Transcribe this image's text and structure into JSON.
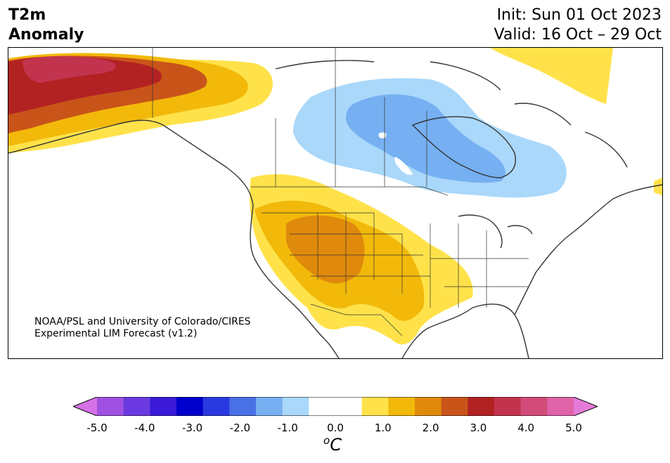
{
  "title": {
    "line1": "T2m",
    "line2": "Anomaly"
  },
  "header_right": {
    "init": "Init: Sun 01 Oct 2023",
    "valid": "Valid: 16 Oct – 29 Oct"
  },
  "credit": {
    "line1": "NOAA/PSL and University of Colorado/CIRES",
    "line2": "Experimental LIM Forecast (v1.2)"
  },
  "colorbar": {
    "unit_base": "C",
    "unit_sup": "o",
    "tick_labels": [
      "-5.0",
      "-4.0",
      "-3.0",
      "-2.0",
      "-1.0",
      "0.0",
      "1.0",
      "2.0",
      "3.0",
      "4.0",
      "5.0"
    ],
    "under_color": "#d670e6",
    "over_color": "#e67ad9",
    "colors": [
      "#a050e0",
      "#6a3ae0",
      "#3a1ad8",
      "#0000cc",
      "#2a3ae0",
      "#4a70e6",
      "#76b0f2",
      "#aad8fa",
      "#ffffff",
      "#ffffff",
      "#ffe24a",
      "#f2b90a",
      "#e08a0c",
      "#c9541a",
      "#b22222",
      "#c2344e",
      "#d14c78",
      "#de63a8"
    ]
  },
  "map_regions": {
    "warm_legend": {
      "yellow": "#ffe24a",
      "orange": "#f2b90a",
      "dark_orange": "#e08a0c",
      "red_orange": "#c9541a",
      "red": "#b22222",
      "crimson": "#c2344e"
    },
    "cool_legend": {
      "light_blue": "#aad8fa",
      "blue": "#76b0f2"
    }
  }
}
